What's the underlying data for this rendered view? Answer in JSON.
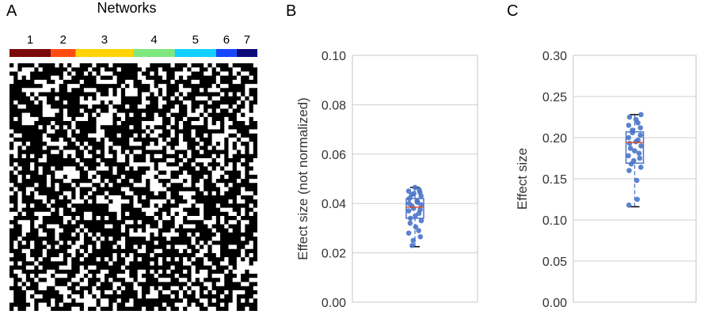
{
  "panels": {
    "a": {
      "letter": "A",
      "title": "Networks",
      "network_labels": [
        "1",
        "2",
        "3",
        "4",
        "5",
        "6",
        "7"
      ],
      "network_colors": [
        "#7a0a0a",
        "#ff4a10",
        "#ffd400",
        "#7ee87e",
        "#12d0ff",
        "#1646ff",
        "#0b0a78"
      ],
      "network_sizes": [
        10,
        6,
        14,
        10,
        10,
        5,
        5
      ]
    },
    "b": {
      "letter": "B"
    },
    "c": {
      "letter": "C"
    }
  },
  "chart_data": [
    {
      "type": "box",
      "panel": "B",
      "title": "",
      "xlabel": "",
      "ylabel": "Effect size (not normalized)",
      "ylim": [
        0,
        0.1
      ],
      "ticks": [
        0.0,
        0.02,
        0.04,
        0.06,
        0.08,
        0.1
      ],
      "tick_labels": [
        "0.00",
        "0.02",
        "0.04",
        "0.06",
        "0.08",
        "0.10"
      ],
      "grid": true,
      "box": {
        "whisker_low": 0.0225,
        "q1": 0.034,
        "median": 0.0385,
        "q3": 0.042,
        "whisker_high": 0.0465
      },
      "points": [
        0.0465,
        0.0455,
        0.045,
        0.0445,
        0.044,
        0.0435,
        0.043,
        0.042,
        0.041,
        0.0405,
        0.04,
        0.0395,
        0.039,
        0.038,
        0.0375,
        0.037,
        0.036,
        0.035,
        0.034,
        0.033,
        0.032,
        0.0305,
        0.029,
        0.028,
        0.0265,
        0.025,
        0.023
      ],
      "box_color": "#4a74c9",
      "point_color": "#4a74c9",
      "median_color": "#e05030"
    },
    {
      "type": "box",
      "panel": "C",
      "title": "",
      "xlabel": "",
      "ylabel": "Effect size",
      "ylim": [
        0,
        0.3
      ],
      "ticks": [
        0.0,
        0.05,
        0.1,
        0.15,
        0.2,
        0.25,
        0.3
      ],
      "tick_labels": [
        "0.00",
        "0.05",
        "0.10",
        "0.15",
        "0.20",
        "0.25",
        "0.30"
      ],
      "grid": true,
      "box": {
        "whisker_low": 0.116,
        "q1": 0.169,
        "median": 0.194,
        "q3": 0.207,
        "whisker_high": 0.228
      },
      "points": [
        0.228,
        0.225,
        0.222,
        0.218,
        0.215,
        0.212,
        0.209,
        0.206,
        0.203,
        0.2,
        0.197,
        0.195,
        0.193,
        0.19,
        0.187,
        0.184,
        0.181,
        0.178,
        0.175,
        0.172,
        0.168,
        0.164,
        0.16,
        0.148,
        0.125,
        0.118
      ],
      "box_color": "#4a74c9",
      "point_color": "#4a74c9",
      "median_color": "#e05030"
    }
  ]
}
